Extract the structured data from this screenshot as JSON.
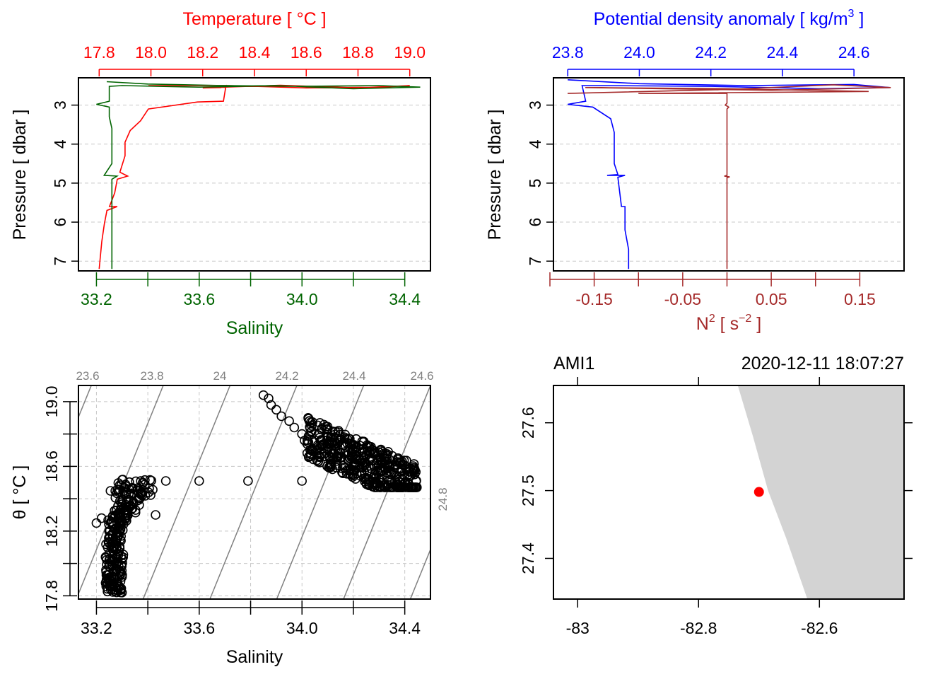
{
  "chart_data": [
    {
      "type": "line",
      "panel": "temperature-salinity-profile",
      "top_axis_label": "Temperature [ °C ]",
      "top_axis_ticks": [
        "17.8",
        "18.0",
        "18.2",
        "18.4",
        "18.6",
        "18.8",
        "19.0"
      ],
      "top_axis_color": "#ff0000",
      "bottom_axis_label": "Salinity",
      "bottom_axis_ticks": [
        "33.2",
        "33.6",
        "34.0",
        "34.4"
      ],
      "bottom_axis_color": "#006400",
      "ylabel": "Pressure [ dbar ]",
      "y_ticks": [
        "3",
        "4",
        "5",
        "6",
        "7"
      ],
      "ylim": [
        7.25,
        2.3
      ],
      "temp_lim": [
        17.72,
        19.08
      ],
      "sal_lim": [
        33.13,
        34.5
      ],
      "grid": true,
      "series": [
        {
          "name": "Temperature",
          "color": "#ff0000",
          "axis": "top",
          "points": [
            [
              17.99,
              2.5
            ],
            [
              18.3,
              2.5
            ],
            [
              18.6,
              2.56
            ],
            [
              18.9,
              2.54
            ],
            [
              19.0,
              2.5
            ],
            [
              18.8,
              2.56
            ],
            [
              18.5,
              2.49
            ],
            [
              18.2,
              2.56
            ],
            [
              18.27,
              2.55
            ],
            [
              18.29,
              2.5
            ],
            [
              18.28,
              2.9
            ],
            [
              18.18,
              2.92
            ],
            [
              17.99,
              3.1
            ],
            [
              17.96,
              3.4
            ],
            [
              17.92,
              3.65
            ],
            [
              17.9,
              3.95
            ],
            [
              17.9,
              4.3
            ],
            [
              17.88,
              4.72
            ],
            [
              17.91,
              4.82
            ],
            [
              17.87,
              4.9
            ],
            [
              17.86,
              5.25
            ],
            [
              17.84,
              5.6
            ],
            [
              17.87,
              5.6
            ],
            [
              17.83,
              5.7
            ],
            [
              17.82,
              6.05
            ],
            [
              17.81,
              6.5
            ],
            [
              17.8,
              7.2
            ]
          ]
        },
        {
          "name": "Salinity",
          "color": "#006400",
          "axis": "bottom",
          "points": [
            [
              33.24,
              2.4
            ],
            [
              33.4,
              2.46
            ],
            [
              33.7,
              2.5
            ],
            [
              34.0,
              2.52
            ],
            [
              34.3,
              2.5
            ],
            [
              34.46,
              2.54
            ],
            [
              34.2,
              2.58
            ],
            [
              33.9,
              2.5
            ],
            [
              33.6,
              2.54
            ],
            [
              33.3,
              2.5
            ],
            [
              33.25,
              2.52
            ],
            [
              33.25,
              2.9
            ],
            [
              33.2,
              2.98
            ],
            [
              33.25,
              3.05
            ],
            [
              33.25,
              3.3
            ],
            [
              33.26,
              3.6
            ],
            [
              33.26,
              4.5
            ],
            [
              33.23,
              4.8
            ],
            [
              33.28,
              4.82
            ],
            [
              33.26,
              4.9
            ],
            [
              33.26,
              5.6
            ],
            [
              33.26,
              7.2
            ]
          ]
        }
      ]
    },
    {
      "type": "line",
      "panel": "density-stability-profile",
      "top_axis_label": "Potential density anomaly [ kg/m",
      "top_axis_label_sup": "3",
      "top_axis_label_end": " ]",
      "top_axis_ticks": [
        "23.8",
        "24.0",
        "24.2",
        "24.4",
        "24.6"
      ],
      "top_axis_color": "#0000ff",
      "bottom_axis_label": "N",
      "bottom_axis_label_sup": "2",
      "bottom_axis_label_end": " [ s",
      "bottom_axis_label_sup2": "−2",
      "bottom_axis_label_end2": " ]",
      "bottom_axis_ticks": [
        "-0.15",
        "-0.05",
        "0.05",
        "0.15"
      ],
      "bottom_axis_color": "#a52a2a",
      "ylabel": "Pressure [ dbar ]",
      "y_ticks": [
        "3",
        "4",
        "5",
        "6",
        "7"
      ],
      "ylim": [
        7.25,
        2.3
      ],
      "sigma_lim": [
        23.76,
        24.74
      ],
      "n2_lim": [
        -0.196,
        0.2
      ],
      "grid": true,
      "series": [
        {
          "name": "Potential density anomaly",
          "color": "#0000ff",
          "axis": "top",
          "points": [
            [
              23.8,
              2.35
            ],
            [
              24.0,
              2.45
            ],
            [
              24.3,
              2.5
            ],
            [
              24.6,
              2.47
            ],
            [
              24.7,
              2.55
            ],
            [
              24.5,
              2.58
            ],
            [
              24.2,
              2.52
            ],
            [
              23.9,
              2.5
            ],
            [
              23.84,
              2.5
            ],
            [
              23.85,
              2.9
            ],
            [
              23.8,
              2.98
            ],
            [
              23.87,
              3.05
            ],
            [
              23.92,
              3.35
            ],
            [
              23.93,
              3.7
            ],
            [
              23.93,
              4.5
            ],
            [
              23.94,
              4.78
            ],
            [
              23.91,
              4.8
            ],
            [
              23.96,
              4.8
            ],
            [
              23.94,
              4.85
            ],
            [
              23.95,
              5.6
            ],
            [
              23.96,
              5.6
            ],
            [
              23.96,
              6.2
            ],
            [
              23.97,
              6.7
            ],
            [
              23.97,
              7.2
            ]
          ]
        },
        {
          "name": "N2",
          "color": "#a52a2a",
          "axis": "bottom",
          "points": [
            [
              -0.18,
              2.7
            ],
            [
              0.0,
              2.6
            ],
            [
              0.12,
              2.48
            ],
            [
              0.185,
              2.55
            ],
            [
              0.05,
              2.62
            ],
            [
              -0.16,
              2.55
            ],
            [
              0.0,
              2.58
            ],
            [
              0.16,
              2.65
            ],
            [
              -0.1,
              2.7
            ],
            [
              0.0,
              2.7
            ],
            [
              0.0,
              2.95
            ],
            [
              -0.002,
              3.0
            ],
            [
              0.002,
              3.05
            ],
            [
              0.0,
              3.1
            ],
            [
              0.0,
              4.8
            ],
            [
              -0.003,
              4.82
            ],
            [
              0.003,
              4.84
            ],
            [
              0.0,
              4.86
            ],
            [
              0.0,
              7.2
            ]
          ]
        }
      ]
    },
    {
      "type": "scatter",
      "panel": "ts-diagram",
      "xlabel": "Salinity",
      "ylabel": "θ [ °C ]",
      "x_ticks": [
        "33.2",
        "33.6",
        "34.0",
        "34.4"
      ],
      "y_ticks": [
        "17.8",
        "18.2",
        "18.6",
        "19.0"
      ],
      "xlim": [
        33.13,
        34.5
      ],
      "ylim": [
        17.78,
        19.1
      ],
      "grid": true,
      "isopycnal_labels": [
        "23.6",
        "23.8",
        "24",
        "24.2",
        "24.4",
        "24.6",
        "24.8"
      ],
      "isopycnal_color": "#808080",
      "point_color": "#000000",
      "clusters": [
        {
          "s_range": [
            33.2,
            33.42
          ],
          "t_range": [
            17.82,
            18.52
          ],
          "n": 260
        },
        {
          "s_range": [
            34.0,
            34.47
          ],
          "t_range": [
            18.45,
            18.9
          ],
          "n": 420
        }
      ],
      "points": [
        [
          33.85,
          19.04
        ],
        [
          33.87,
          19.02
        ],
        [
          33.88,
          18.98
        ],
        [
          33.9,
          18.95
        ],
        [
          33.92,
          18.91
        ],
        [
          33.95,
          18.88
        ],
        [
          33.97,
          18.84
        ],
        [
          34.0,
          18.8
        ],
        [
          34.01,
          18.76
        ],
        [
          33.47,
          18.51
        ],
        [
          33.6,
          18.51
        ],
        [
          33.79,
          18.51
        ],
        [
          34.0,
          18.51
        ],
        [
          33.2,
          18.25
        ],
        [
          33.22,
          18.28
        ],
        [
          33.43,
          18.3
        ],
        [
          33.27,
          17.83
        ],
        [
          33.27,
          17.9
        ]
      ]
    },
    {
      "type": "map",
      "panel": "station-map",
      "station_label": "AMI1",
      "timestamp": "2020-12-11 18:07:27",
      "x_ticks": [
        "-83",
        "-82.8",
        "-82.6"
      ],
      "y_ticks": [
        "27.4",
        "27.5",
        "27.6"
      ],
      "lon_lim": [
        -83.04,
        -82.46
      ],
      "lat_lim": [
        27.34,
        27.655
      ],
      "land_color": "#d3d3d3",
      "station_color": "#ff0000",
      "station": {
        "lon": -82.7,
        "lat": 27.498
      },
      "coastline": [
        [
          -82.735,
          27.655
        ],
        [
          -82.71,
          27.58
        ],
        [
          -82.685,
          27.5
        ],
        [
          -82.655,
          27.43
        ],
        [
          -82.62,
          27.34
        ]
      ]
    }
  ]
}
